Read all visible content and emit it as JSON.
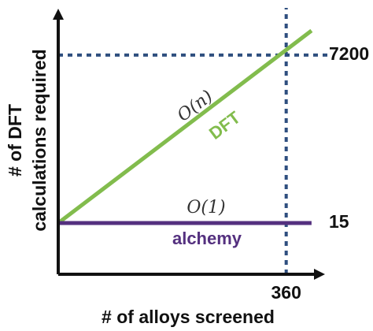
{
  "chart_data": {
    "type": "line",
    "xlabel": "# of alloys screened",
    "ylabel_lines": [
      "# of DFT",
      "calculations required"
    ],
    "x_tick_values": [
      360
    ],
    "x_tick_labels": [
      "360"
    ],
    "y_tick_values": [
      7200,
      15
    ],
    "y_tick_labels": [
      "7200",
      "15"
    ],
    "xlim": [
      0,
      425
    ],
    "ylim": [
      0,
      8800
    ],
    "grid": false,
    "reference_lines": [
      {
        "orientation": "vertical",
        "value": 360,
        "style": "dotted",
        "color": "#2f4f7f"
      },
      {
        "orientation": "horizontal",
        "value": 7200,
        "style": "dotted",
        "color": "#2f4f7f"
      }
    ],
    "series": [
      {
        "name": "DFT",
        "complexity": "O(n)",
        "color": "#82bc4d",
        "x": [
          0,
          400
        ],
        "y": [
          0,
          8000
        ]
      },
      {
        "name": "alchemy",
        "complexity": "O(1)",
        "color": "#54307f",
        "x": [
          0,
          400
        ],
        "y": [
          15,
          15
        ]
      }
    ]
  }
}
